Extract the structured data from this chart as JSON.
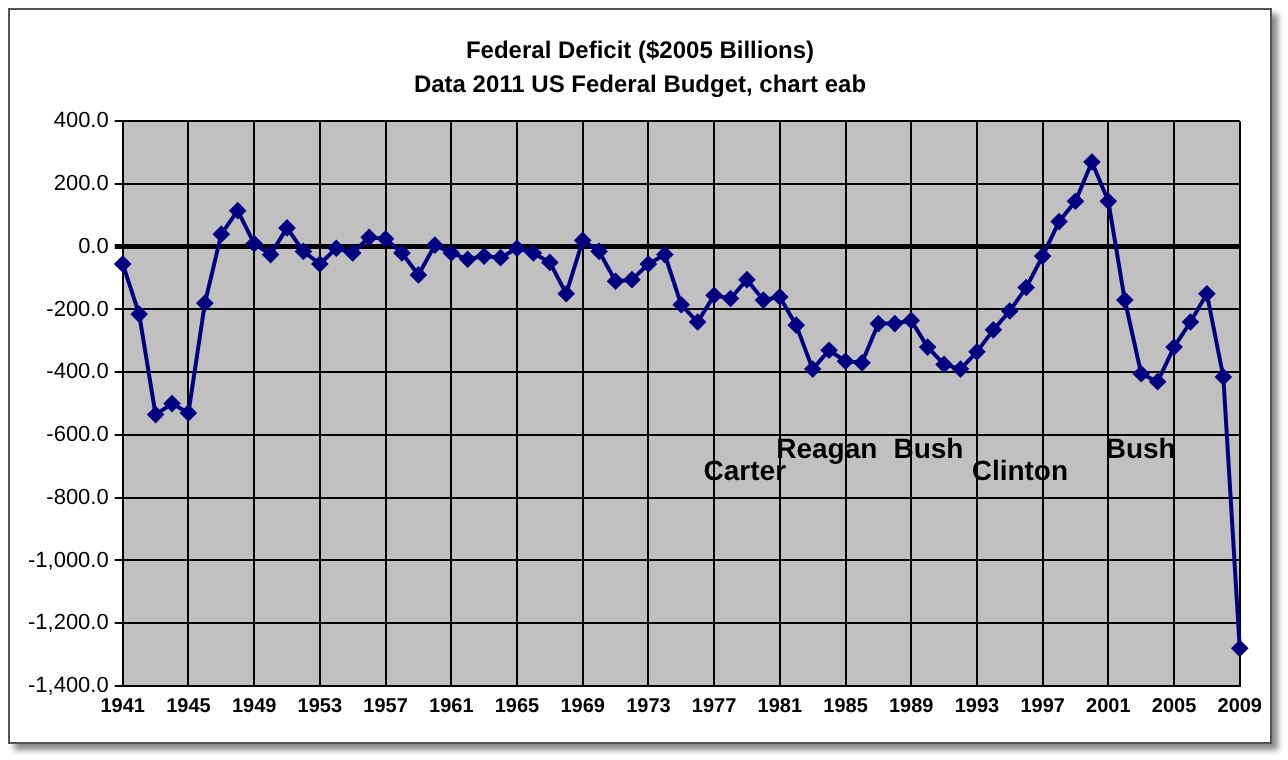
{
  "chart_data": {
    "type": "line",
    "title": "Federal Deficit ($2005 Billions)",
    "subtitle": "Data 2011 US Federal Budget, chart eab",
    "categories": [
      "1941",
      null,
      null,
      null,
      "1945",
      null,
      null,
      null,
      "1949",
      null,
      null,
      null,
      "1953",
      null,
      null,
      null,
      "1957",
      null,
      null,
      null,
      "1961",
      null,
      null,
      null,
      "1965",
      null,
      null,
      null,
      "1969",
      null,
      null,
      null,
      "1973",
      null,
      null,
      null,
      "1977",
      null,
      null,
      null,
      "1981",
      null,
      null,
      null,
      "1985",
      null,
      null,
      null,
      "1989",
      null,
      null,
      null,
      "1993",
      null,
      null,
      null,
      "1997",
      null,
      null,
      null,
      "2001",
      null,
      null,
      null,
      "2005",
      null,
      null,
      null,
      "2009"
    ],
    "series": [
      {
        "color": "#000080",
        "values": [
          -55,
          -215,
          -535,
          -500,
          -530,
          -180,
          40,
          115,
          10,
          -25,
          60,
          -15,
          -55,
          -5,
          -20,
          30,
          25,
          -20,
          -90,
          5,
          -20,
          -40,
          -30,
          -35,
          -5,
          -20,
          -50,
          -150,
          20,
          -15,
          -110,
          -105,
          -55,
          -25,
          -185,
          -240,
          -155,
          -165,
          -105,
          -170,
          -160,
          -250,
          -390,
          -330,
          -365,
          -370,
          -245,
          -245,
          -235,
          -320,
          -375,
          -390,
          -335,
          -265,
          -205,
          -130,
          -30,
          80,
          145,
          270,
          145,
          -170,
          -405,
          -430,
          -320,
          -240,
          -150,
          -415,
          -1280
        ]
      }
    ],
    "ylim": [
      -1400,
      400
    ],
    "yticks": [
      {
        "value": -1400,
        "label": "-1,400.0"
      },
      {
        "value": -1200,
        "label": "-1,200.0"
      },
      {
        "value": -1000,
        "label": "-1,000.0"
      },
      {
        "value": -800,
        "label": "-800.0"
      },
      {
        "value": -600,
        "label": "-600.0"
      },
      {
        "value": -400,
        "label": "-400.0"
      },
      {
        "value": -200,
        "label": "-200.0"
      },
      {
        "value": 0,
        "label": "0.0"
      },
      {
        "value": 200,
        "label": "200.0"
      },
      {
        "value": 400,
        "label": "400.0"
      }
    ],
    "annotations": [
      "Carter",
      "Reagan",
      "Bush",
      "Clinton",
      "Bush"
    ],
    "grid": true,
    "legend": false,
    "marker": "diamond",
    "line_style": "solid"
  }
}
